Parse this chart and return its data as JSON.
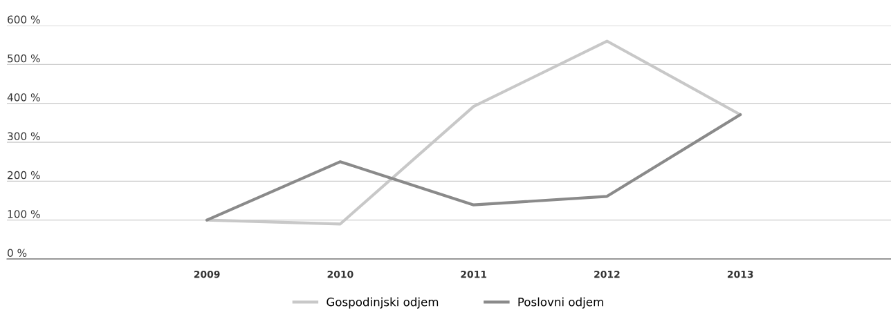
{
  "chart_data": {
    "type": "line",
    "categories": [
      "2009",
      "2010",
      "2011",
      "2012",
      "2013"
    ],
    "series": [
      {
        "name": "Gospodinjski odjem",
        "color": "#c8c8c8",
        "values": [
          100,
          90,
          392,
          560,
          371
        ]
      },
      {
        "name": "Poslovni odjem",
        "color": "#8a8a8a",
        "values": [
          100,
          250,
          139,
          161,
          371
        ]
      }
    ],
    "ylim": [
      0,
      600
    ],
    "yticks": [
      {
        "value": 0,
        "label": "0 %"
      },
      {
        "value": 100,
        "label": "100 %"
      },
      {
        "value": 200,
        "label": "200 %"
      },
      {
        "value": 300,
        "label": "300 %"
      },
      {
        "value": 400,
        "label": "400 %"
      },
      {
        "value": 500,
        "label": "500 %"
      },
      {
        "value": 600,
        "label": "600 %"
      }
    ],
    "grid": "y",
    "legend": "bottom",
    "marker": "none",
    "line_style": "solid"
  }
}
